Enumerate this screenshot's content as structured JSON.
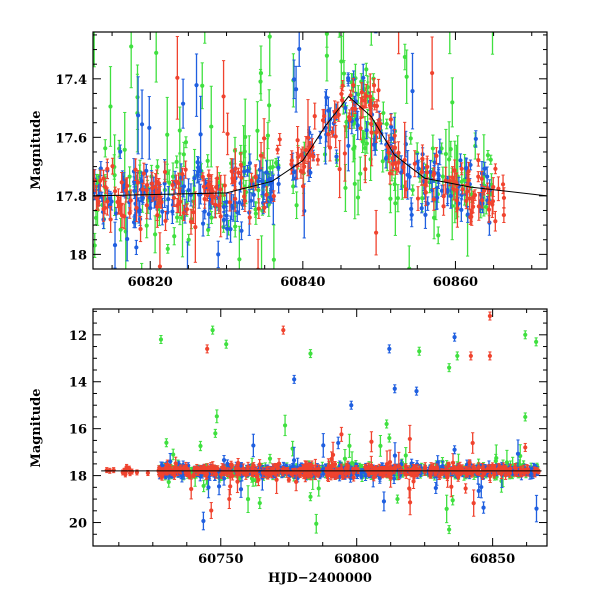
{
  "chart_data": [
    {
      "type": "scatter",
      "title": "",
      "xlabel": "",
      "ylabel": "Magnitude",
      "xlim": [
        60812.5,
        60872
      ],
      "ylim": [
        18.05,
        17.24
      ],
      "y_inverted": true,
      "xticks": [
        60820,
        60840,
        60860
      ],
      "yticks": [
        17.4,
        17.6,
        17.8,
        18
      ],
      "ytick_labels": [
        "17.4",
        "17.6",
        "17.8",
        "18"
      ],
      "grid": false,
      "colors": {
        "blue": "#1f5fe0",
        "green": "#3fe03f",
        "red": "#f0432e",
        "model": "#000000"
      },
      "model_curve": {
        "x": [
          60812.5,
          60830,
          60836,
          60840,
          60843,
          60846,
          60849,
          60852,
          60856,
          60862,
          60872
        ],
        "y": [
          17.8,
          17.79,
          17.75,
          17.68,
          17.56,
          17.46,
          17.53,
          17.66,
          17.74,
          17.77,
          17.8
        ]
      },
      "series": [
        {
          "color_key": "blue",
          "x_range": [
            60812.5,
            60865
          ],
          "scatter": 0.06,
          "outlier_frac": 0.1
        },
        {
          "color_key": "green",
          "x_range": [
            60812.5,
            60865
          ],
          "scatter": 0.08,
          "outlier_frac": 0.3
        },
        {
          "color_key": "red",
          "x_range": [
            60812.5,
            60866.5
          ],
          "scatter": 0.05,
          "outlier_frac": 0.1
        }
      ]
    },
    {
      "type": "scatter",
      "title": "",
      "xlabel": "HJD−2400000",
      "ylabel": "Magnitude",
      "xlim": [
        60703,
        60870
      ],
      "ylim": [
        21,
        10.9
      ],
      "y_inverted": true,
      "xticks": [
        60750,
        60800,
        60850
      ],
      "yticks": [
        12,
        14,
        16,
        18,
        20
      ],
      "grid": false,
      "colors": {
        "blue": "#1f5fe0",
        "green": "#3fe03f",
        "red": "#f0432e",
        "model": "#000000"
      },
      "baseline_mag": 17.8,
      "outliers": [
        {
          "x": 60728,
          "y": 12.2,
          "c": "green"
        },
        {
          "x": 60745,
          "y": 12.6,
          "c": "red"
        },
        {
          "x": 60747,
          "y": 11.8,
          "c": "green"
        },
        {
          "x": 60752,
          "y": 12.4,
          "c": "green"
        },
        {
          "x": 60773,
          "y": 11.8,
          "c": "red"
        },
        {
          "x": 60777,
          "y": 13.9,
          "c": "blue"
        },
        {
          "x": 60783,
          "y": 12.8,
          "c": "green"
        },
        {
          "x": 60798,
          "y": 15.0,
          "c": "blue"
        },
        {
          "x": 60812,
          "y": 12.6,
          "c": "blue"
        },
        {
          "x": 60814,
          "y": 14.3,
          "c": "blue"
        },
        {
          "x": 60822,
          "y": 14.4,
          "c": "blue"
        },
        {
          "x": 60823,
          "y": 12.7,
          "c": "green"
        },
        {
          "x": 60834,
          "y": 13.4,
          "c": "green"
        },
        {
          "x": 60836,
          "y": 12.1,
          "c": "blue"
        },
        {
          "x": 60837,
          "y": 12.9,
          "c": "green"
        },
        {
          "x": 60842,
          "y": 12.9,
          "c": "red"
        },
        {
          "x": 60849,
          "y": 12.9,
          "c": "red"
        },
        {
          "x": 60849,
          "y": 11.2,
          "c": "red"
        },
        {
          "x": 60862,
          "y": 12.0,
          "c": "green"
        },
        {
          "x": 60866,
          "y": 12.3,
          "c": "green"
        },
        {
          "x": 60834,
          "y": 20.3,
          "c": "green"
        },
        {
          "x": 60783,
          "y": 18.9,
          "c": "green"
        },
        {
          "x": 60811,
          "y": 15.8,
          "c": "green"
        },
        {
          "x": 60748,
          "y": 16.2,
          "c": "green"
        },
        {
          "x": 60730,
          "y": 16.6,
          "c": "green"
        },
        {
          "x": 60862,
          "y": 15.5,
          "c": "green"
        },
        {
          "x": 60815,
          "y": 19.0,
          "c": "green"
        },
        {
          "x": 60836,
          "y": 16.9,
          "c": "blue"
        },
        {
          "x": 60812,
          "y": 16.4,
          "c": "green"
        },
        {
          "x": 60862,
          "y": 16.8,
          "c": "red"
        }
      ]
    }
  ]
}
